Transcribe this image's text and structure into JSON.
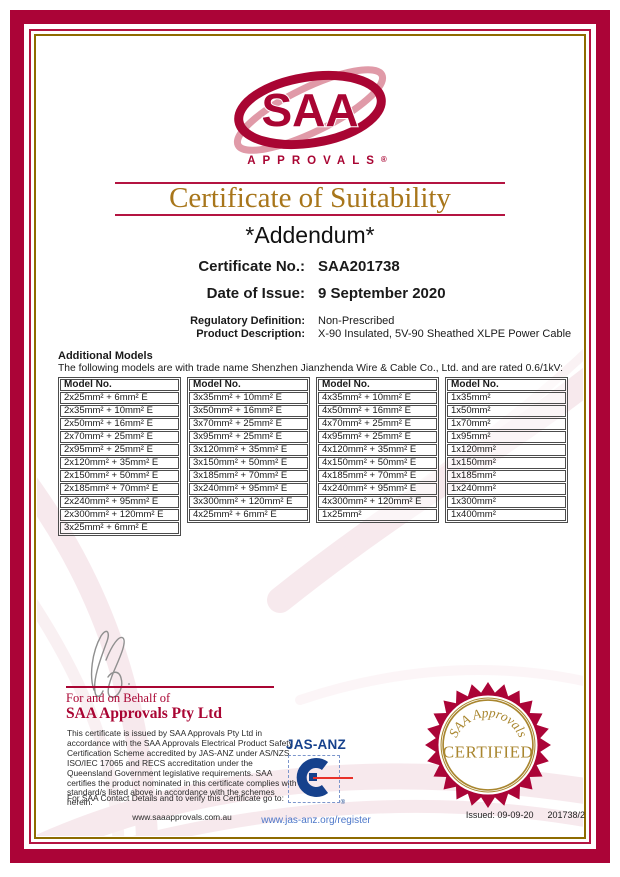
{
  "logo": {
    "text": "SAA",
    "subtext": "APPROVALS",
    "registered": "®"
  },
  "title": "Certificate of Suitability",
  "addendum": "*Addendum*",
  "fields": {
    "certificate_no_label": "Certificate No.:",
    "certificate_no_value": "SAA201738",
    "date_label": "Date of Issue:",
    "date_value": "9 September 2020",
    "regulatory_label": "Regulatory Definition:",
    "regulatory_value": "Non-Prescribed",
    "product_label": "Product Description:",
    "product_value": "X-90 Insulated, 5V-90 Sheathed XLPE Power Cable"
  },
  "models": {
    "heading": "Additional Models",
    "intro": "The following models are with trade name Shenzhen Jianzhenda Wire & Cable Co., Ltd. and are rated 0.6/1kV:",
    "column_header": "Model No.",
    "tables": [
      [
        "2x25mm² + 6mm² E",
        "2x35mm² + 10mm² E",
        "2x50mm² + 16mm² E",
        "2x70mm² + 25mm² E",
        "2x95mm² + 25mm² E",
        "2x120mm² + 35mm² E",
        "2x150mm² + 50mm² E",
        "2x185mm² + 70mm² E",
        "2x240mm² + 95mm² E",
        "2x300mm² + 120mm² E",
        "3x25mm² + 6mm² E"
      ],
      [
        "3x35mm² + 10mm² E",
        "3x50mm² + 16mm² E",
        "3x70mm² + 25mm² E",
        "3x95mm² + 25mm² E",
        "3x120mm² + 35mm² E",
        "3x150mm² + 50mm² E",
        "3x185mm² + 70mm² E",
        "3x240mm² + 95mm² E",
        "3x300mm² + 120mm² E",
        "4x25mm² + 6mm² E"
      ],
      [
        "4x35mm² + 10mm² E",
        "4x50mm² + 16mm² E",
        "4x70mm² + 25mm² E",
        "4x95mm² + 25mm² E",
        "4x120mm² + 35mm² E",
        "4x150mm² + 50mm² E",
        "4x185mm² + 70mm² E",
        "4x240mm² + 95mm² E",
        "4x300mm² + 120mm² E",
        "1x25mm²"
      ],
      [
        "1x35mm²",
        "1x50mm²",
        "1x70mm²",
        "1x95mm²",
        "1x120mm²",
        "1x150mm²",
        "1x185mm²",
        "1x240mm²",
        "1x300mm²",
        "1x400mm²"
      ]
    ]
  },
  "signature": {
    "behalf": "For and on Behalf of",
    "company": "SAA Approvals Pty Ltd"
  },
  "footer": {
    "disclaimer": "This certificate is issued by SAA Approvals Pty Ltd in accordance with the SAA Approvals Electrical Product Safety Certification Scheme accredited by JAS-ANZ under AS/NZS ISO/IEC 17065 and RECS accreditation under the Queensland Government legislative requirements. SAA certifies the product nominated in this certificate complies with standard/s listed above in accordance with the schemes herein.",
    "verify": "For SAA Contact Details and to verify this Certificate go to:",
    "saa_url": "www.saaapprovals.com.au",
    "jasanz_label": "JAS-ANZ",
    "jasanz_registered": "®",
    "jasanz_url": "www.jas-anz.org/register",
    "issued": "Issued: 09-09-20",
    "doc_ref": "201738/2"
  },
  "seal": {
    "top_text": "SAA Approvals",
    "main_text": "CERTIFIED"
  },
  "colors": {
    "crimson": "#AB0437",
    "gold_frame": "#8E6B00",
    "gold_title": "#A8761B",
    "seal_gold": "#A9862F",
    "jasanz_blue": "#16418C",
    "watermark_pink": "#F3DEE4"
  }
}
